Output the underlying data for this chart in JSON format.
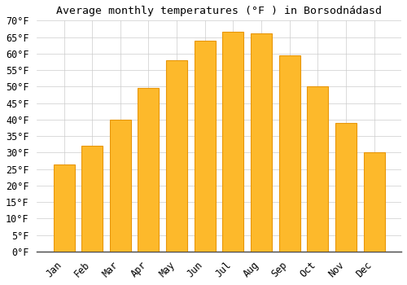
{
  "title": "Average monthly temperatures (°F ) in Borsodnádasd",
  "months": [
    "Jan",
    "Feb",
    "Mar",
    "Apr",
    "May",
    "Jun",
    "Jul",
    "Aug",
    "Sep",
    "Oct",
    "Nov",
    "Dec"
  ],
  "values": [
    26.5,
    32,
    40,
    49.5,
    58,
    64,
    66.5,
    66,
    59.5,
    50,
    39,
    30
  ],
  "bar_color": "#FDB92B",
  "bar_edge_color": "#E8960A",
  "background_color": "#FFFFFF",
  "grid_color": "#CCCCCC",
  "ylim": [
    0,
    70
  ],
  "yticks": [
    0,
    5,
    10,
    15,
    20,
    25,
    30,
    35,
    40,
    45,
    50,
    55,
    60,
    65,
    70
  ],
  "title_fontsize": 9.5,
  "tick_fontsize": 8.5
}
